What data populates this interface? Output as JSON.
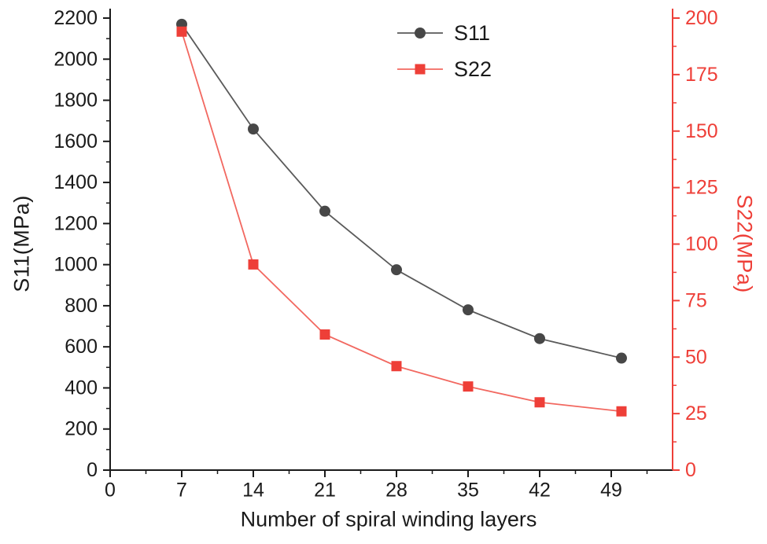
{
  "chart_data": {
    "type": "line",
    "title": "",
    "xlabel": "Number of spiral winding layers",
    "ylabel_left": "S11(MPa)",
    "ylabel_right": "S22(MPa)",
    "x": [
      7,
      14,
      21,
      28,
      35,
      42,
      50
    ],
    "series": [
      {
        "name": "S11",
        "axis": "left",
        "color": "#474747",
        "line_color": "#5a5a5a",
        "marker": "circle",
        "values": [
          2170,
          1660,
          1260,
          975,
          780,
          640,
          545
        ]
      },
      {
        "name": "S22",
        "axis": "right",
        "color": "#ee3f38",
        "line_color": "#f26860",
        "marker": "square",
        "values": [
          194,
          91,
          60,
          46,
          37,
          30,
          26
        ]
      }
    ],
    "xlim": [
      0,
      55
    ],
    "x_ticks": [
      0,
      7,
      14,
      21,
      28,
      35,
      42,
      49
    ],
    "left_ylim": [
      0,
      2200
    ],
    "left_ticks": [
      0,
      200,
      400,
      600,
      800,
      1000,
      1200,
      1400,
      1600,
      1800,
      2000,
      2200
    ],
    "right_ylim": [
      0,
      200
    ],
    "right_ticks": [
      0,
      25,
      50,
      75,
      100,
      125,
      150,
      175,
      200
    ],
    "legend": {
      "position": "top-center",
      "entries": [
        "S11",
        "S22"
      ]
    },
    "grid": false,
    "colors": {
      "axis_black": "#1a1a1a",
      "axis_red": "#ee3f38",
      "background": "#ffffff"
    }
  }
}
